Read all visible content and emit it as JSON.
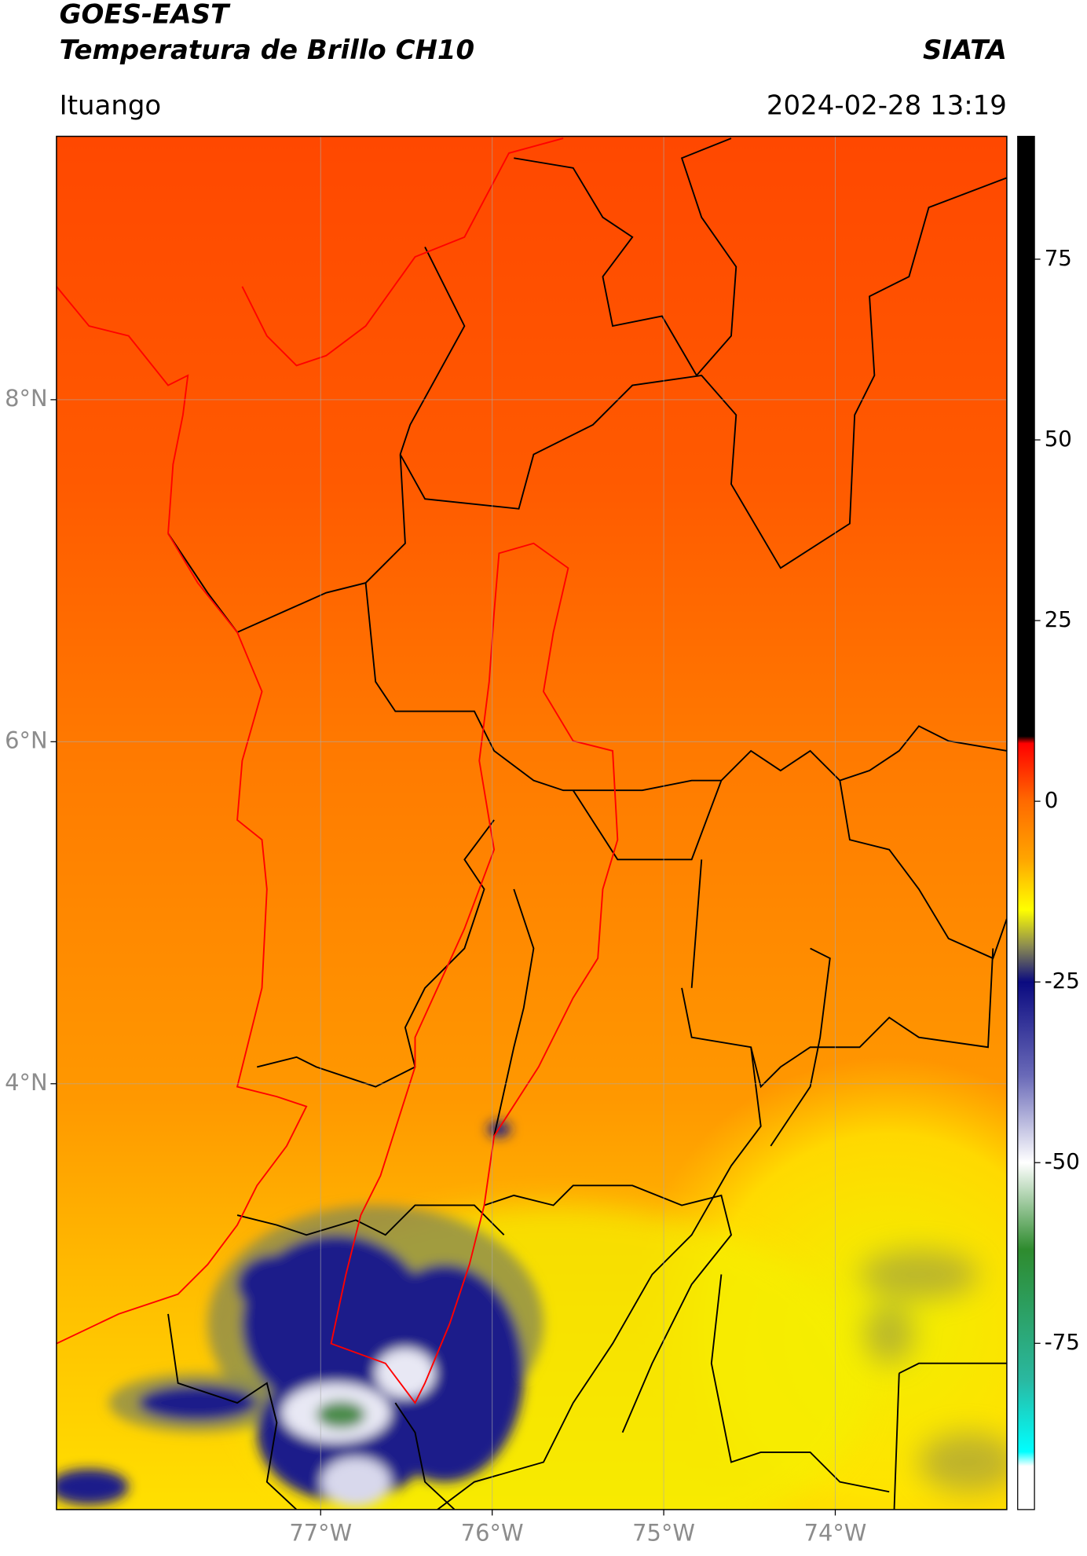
{
  "chart_data": {
    "type": "map",
    "title": "GOES-EAST",
    "subtitle": "Temperatura de Brillo CH10",
    "location": "Ituango",
    "datetime": "2024-02-28 13:19",
    "source": "SIATA",
    "xlim": [
      -78.54,
      -73.0
    ],
    "ylim": [
      1.51,
      9.54
    ],
    "xticks": [
      {
        "value": -77,
        "label": "77°W"
      },
      {
        "value": -76,
        "label": "76°W"
      },
      {
        "value": -75,
        "label": "75°W"
      },
      {
        "value": -74,
        "label": "74°W"
      }
    ],
    "yticks": [
      {
        "value": 8,
        "label": "8°N"
      },
      {
        "value": 6,
        "label": "6°N"
      },
      {
        "value": 4,
        "label": "4°N"
      }
    ],
    "grid": true,
    "colorbar": {
      "lim": [
        -98,
        92
      ],
      "ticks": [
        75,
        50,
        25,
        0,
        -25,
        -50,
        -75
      ],
      "colors": [
        {
          "value": 92,
          "color": "#000000"
        },
        {
          "value": 9,
          "color": "#000000"
        },
        {
          "value": 8,
          "color": "#ff0000"
        },
        {
          "value": 0,
          "color": "#ff6a00"
        },
        {
          "value": -8,
          "color": "#ffa500"
        },
        {
          "value": -15,
          "color": "#ffff00"
        },
        {
          "value": -20,
          "color": "#8c8c50"
        },
        {
          "value": -25,
          "color": "#0a0a80"
        },
        {
          "value": -38,
          "color": "#6a6ab8"
        },
        {
          "value": -50,
          "color": "#ffffff"
        },
        {
          "value": -62,
          "color": "#2e8b2e"
        },
        {
          "value": -80,
          "color": "#2ab8a0"
        },
        {
          "value": -90,
          "color": "#00ffff"
        },
        {
          "value": -92,
          "color": "#ffffff"
        },
        {
          "value": -98,
          "color": "#ffffff"
        }
      ]
    }
  }
}
